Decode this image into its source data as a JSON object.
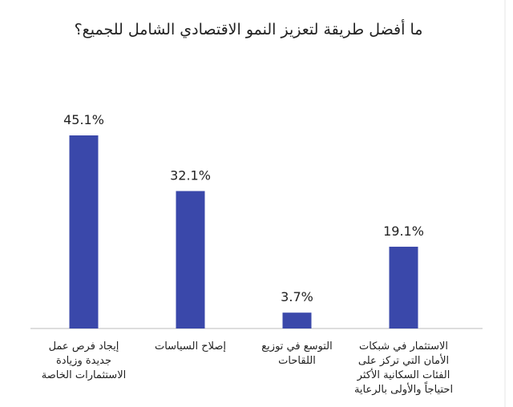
{
  "chart_data": {
    "type": "bar",
    "title": "ما أفضل طريقة لتعزيز النمو الاقتصادي الشامل للجميع؟",
    "categories": [
      "إيجاد فرص عمل جديدة وزيادة الاستثمارات الخاصة",
      "إصلاح السياسات",
      "التوسع في توزيع اللقاحات",
      "الاستثمار في شبكات الأمان التي تركز على الفئات السكانية الأكثر احتياجاً والأولى بالرعاية"
    ],
    "values": [
      45.1,
      32.1,
      3.7,
      19.1
    ],
    "value_labels": [
      "45.1%",
      "32.1%",
      "3.7%",
      "19.1%"
    ],
    "color": "#3a48aa"
  }
}
